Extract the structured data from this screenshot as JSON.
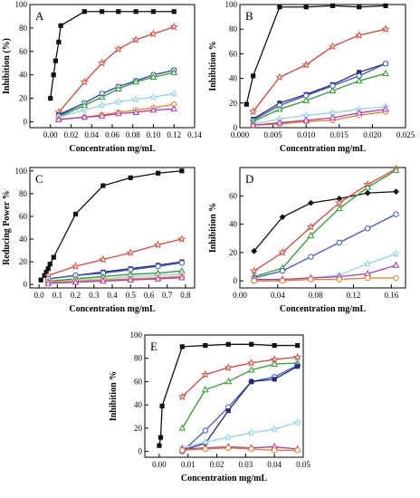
{
  "colors": {
    "black": "#111111",
    "red": "#e0413a",
    "navy": "#2a2a7a",
    "blue": "#3a56c8",
    "green": "#2aa02a",
    "cyan": "#8fd3e8",
    "orange": "#ef7d22",
    "magenta": "#b03ab0"
  },
  "chart_data": [
    {
      "id": "A",
      "type": "line",
      "label": "A",
      "xlabel": "Concentration   mg/mL",
      "ylabel": "Inhibition  (%)",
      "xlim": [
        -0.02,
        0.14
      ],
      "ylim": [
        -5,
        100
      ],
      "xticks": [
        "0.00",
        "0.02",
        "0.04",
        "0.06",
        "0.08",
        "0.10",
        "0.12",
        "0.14"
      ],
      "yticks": [
        "0",
        "20",
        "40",
        "60",
        "80",
        "100"
      ],
      "series": [
        {
          "color": "black",
          "marker": "square",
          "x": [
            0.0,
            0.003,
            0.005,
            0.008,
            0.01,
            0.033,
            0.05,
            0.066,
            0.083,
            0.1,
            0.12
          ],
          "y": [
            20,
            40,
            52,
            68,
            82,
            94,
            94,
            94,
            94,
            94,
            94
          ]
        },
        {
          "color": "red",
          "marker": "star",
          "x": [
            0.008,
            0.033,
            0.05,
            0.066,
            0.083,
            0.1,
            0.12
          ],
          "y": [
            8,
            34,
            50,
            62,
            70,
            75,
            81
          ]
        },
        {
          "color": "navy",
          "marker": "square",
          "x": [
            0.008,
            0.033,
            0.05,
            0.066,
            0.083,
            0.1,
            0.12
          ],
          "y": [
            6,
            16,
            24,
            30,
            35,
            40,
            44
          ]
        },
        {
          "color": "blue",
          "marker": "circle",
          "x": [
            0.008,
            0.033,
            0.05,
            0.066,
            0.083,
            0.1,
            0.12
          ],
          "y": [
            5,
            16,
            24,
            30,
            35,
            40,
            44
          ]
        },
        {
          "color": "green",
          "marker": "triangle",
          "x": [
            0.008,
            0.033,
            0.05,
            0.066,
            0.083,
            0.1,
            0.12
          ],
          "y": [
            4,
            14,
            21,
            28,
            34,
            38,
            42
          ]
        },
        {
          "color": "cyan",
          "marker": "star",
          "x": [
            0.008,
            0.033,
            0.05,
            0.066,
            0.083,
            0.1,
            0.12
          ],
          "y": [
            4,
            10,
            14,
            17,
            19,
            21,
            24
          ]
        },
        {
          "color": "orange",
          "marker": "circle",
          "x": [
            0.008,
            0.033,
            0.05,
            0.066,
            0.083,
            0.1,
            0.12
          ],
          "y": [
            2,
            4,
            6,
            8,
            10,
            12,
            15
          ]
        },
        {
          "color": "magenta",
          "marker": "triangle",
          "x": [
            0.008,
            0.033,
            0.05,
            0.066,
            0.083,
            0.1,
            0.12
          ],
          "y": [
            2,
            4,
            5,
            7,
            8,
            10,
            11
          ]
        }
      ]
    },
    {
      "id": "B",
      "type": "line",
      "label": "B",
      "xlabel": "Concentration   mg/mL",
      "ylabel": "Inhibition   %",
      "xlim": [
        0.0,
        0.025
      ],
      "ylim": [
        0,
        100
      ],
      "xticks": [
        "0.000",
        "0.005",
        "0.010",
        "0.015",
        "0.020",
        "0.025"
      ],
      "yticks": [
        "0",
        "20",
        "40",
        "60",
        "80",
        "100"
      ],
      "series": [
        {
          "color": "black",
          "marker": "square",
          "x": [
            0.001,
            0.002,
            0.006,
            0.01,
            0.014,
            0.018,
            0.022
          ],
          "y": [
            19,
            42,
            98,
            98,
            99,
            98,
            99
          ]
        },
        {
          "color": "red",
          "marker": "star",
          "x": [
            0.002,
            0.006,
            0.01,
            0.014,
            0.018,
            0.022
          ],
          "y": [
            13,
            41,
            51,
            66,
            75,
            80
          ]
        },
        {
          "color": "navy",
          "marker": "square",
          "x": [
            0.002,
            0.006,
            0.01,
            0.014,
            0.018,
            0.022
          ],
          "y": [
            7,
            20,
            27,
            35,
            45,
            52
          ]
        },
        {
          "color": "blue",
          "marker": "circle",
          "x": [
            0.002,
            0.006,
            0.01,
            0.014,
            0.018,
            0.022
          ],
          "y": [
            6,
            18,
            26,
            34,
            42,
            52
          ]
        },
        {
          "color": "green",
          "marker": "triangle",
          "x": [
            0.002,
            0.006,
            0.01,
            0.014,
            0.018,
            0.022
          ],
          "y": [
            5,
            15,
            22,
            30,
            38,
            44
          ]
        },
        {
          "color": "cyan",
          "marker": "star",
          "x": [
            0.002,
            0.006,
            0.01,
            0.014,
            0.018,
            0.022
          ],
          "y": [
            3,
            7,
            10,
            12,
            15,
            17
          ]
        },
        {
          "color": "orange",
          "marker": "circle",
          "x": [
            0.002,
            0.006,
            0.01,
            0.014,
            0.018,
            0.022
          ],
          "y": [
            2,
            3,
            5,
            6,
            10,
            13
          ]
        },
        {
          "color": "magenta",
          "marker": "triangle",
          "x": [
            0.002,
            0.006,
            0.01,
            0.014,
            0.018,
            0.022
          ],
          "y": [
            2,
            4,
            6,
            8,
            12,
            15
          ]
        }
      ]
    },
    {
      "id": "C",
      "type": "line",
      "label": "C",
      "xlabel": "Concentration   mg/mL",
      "ylabel": "Reducing Power %",
      "xlim": [
        -0.05,
        0.85
      ],
      "ylim": [
        -3,
        103
      ],
      "xticks": [
        "0.0",
        "0.1",
        "0.2",
        "0.3",
        "0.4",
        "0.5",
        "0.6",
        "0.7",
        "0.8"
      ],
      "yticks": [
        "0",
        "20",
        "40",
        "60",
        "80",
        "100"
      ],
      "series": [
        {
          "color": "black",
          "marker": "square",
          "x": [
            0.01,
            0.03,
            0.04,
            0.05,
            0.06,
            0.08,
            0.2,
            0.35,
            0.5,
            0.65,
            0.78
          ],
          "y": [
            4,
            8,
            11,
            14,
            18,
            24,
            62,
            87,
            94,
            98,
            100
          ]
        },
        {
          "color": "red",
          "marker": "star",
          "x": [
            0.05,
            0.2,
            0.35,
            0.5,
            0.65,
            0.78
          ],
          "y": [
            8,
            16,
            22,
            28,
            35,
            40
          ]
        },
        {
          "color": "navy",
          "marker": "square",
          "x": [
            0.05,
            0.2,
            0.35,
            0.5,
            0.65,
            0.78
          ],
          "y": [
            5,
            8,
            11,
            14,
            17,
            20
          ]
        },
        {
          "color": "blue",
          "marker": "circle",
          "x": [
            0.05,
            0.2,
            0.35,
            0.5,
            0.65,
            0.78
          ],
          "y": [
            5,
            8,
            10,
            13,
            16,
            19
          ]
        },
        {
          "color": "green",
          "marker": "triangle",
          "x": [
            0.05,
            0.2,
            0.35,
            0.5,
            0.65,
            0.78
          ],
          "y": [
            3,
            5,
            7,
            9,
            10,
            12
          ]
        },
        {
          "color": "cyan",
          "marker": "star",
          "x": [
            0.05,
            0.2,
            0.35,
            0.5,
            0.65,
            0.78
          ],
          "y": [
            2,
            4,
            5,
            7,
            8,
            9
          ]
        },
        {
          "color": "orange",
          "marker": "circle",
          "x": [
            0.05,
            0.2,
            0.35,
            0.5,
            0.65,
            0.78
          ],
          "y": [
            2,
            3,
            4,
            5,
            6,
            7
          ]
        },
        {
          "color": "magenta",
          "marker": "triangle",
          "x": [
            0.05,
            0.2,
            0.35,
            0.5,
            0.65,
            0.78
          ],
          "y": [
            1,
            2,
            3,
            4,
            5,
            6
          ]
        }
      ]
    },
    {
      "id": "D",
      "type": "line",
      "label": "D",
      "xlabel": "Concentration   mg/mL",
      "ylabel": "Inhibition   %",
      "xlim": [
        0.0,
        0.175
      ],
      "ylim": [
        -5,
        80
      ],
      "xticks": [
        "0.00",
        "0.04",
        "0.08",
        "0.12",
        "0.16"
      ],
      "yticks": [
        "0",
        "20",
        "40",
        "60"
      ],
      "series": [
        {
          "color": "black",
          "marker": "diamond",
          "x": [
            0.015,
            0.045,
            0.075,
            0.105,
            0.135,
            0.165
          ],
          "y": [
            21,
            45,
            55,
            58,
            62,
            63
          ]
        },
        {
          "color": "red",
          "marker": "star",
          "x": [
            0.015,
            0.045,
            0.075,
            0.105,
            0.135,
            0.165
          ],
          "y": [
            7,
            20,
            38,
            55,
            68,
            79
          ]
        },
        {
          "color": "green",
          "marker": "triangle",
          "x": [
            0.015,
            0.045,
            0.075,
            0.105,
            0.135,
            0.165
          ],
          "y": [
            3,
            9,
            32,
            51,
            66,
            78
          ]
        },
        {
          "color": "blue",
          "marker": "circle",
          "x": [
            0.015,
            0.045,
            0.075,
            0.105,
            0.135,
            0.165
          ],
          "y": [
            2,
            7,
            17,
            27,
            37,
            47
          ]
        },
        {
          "color": "cyan",
          "marker": "star",
          "x": [
            0.015,
            0.045,
            0.075,
            0.105,
            0.135,
            0.165
          ],
          "y": [
            1,
            1,
            2,
            4,
            12,
            19
          ]
        },
        {
          "color": "magenta",
          "marker": "triangle",
          "x": [
            0.015,
            0.045,
            0.075,
            0.105,
            0.135,
            0.165
          ],
          "y": [
            1,
            1,
            2,
            3,
            5,
            11
          ]
        },
        {
          "color": "orange",
          "marker": "circle",
          "x": [
            0.015,
            0.045,
            0.075,
            0.105,
            0.135,
            0.165
          ],
          "y": [
            0,
            0,
            1,
            1,
            2,
            2
          ]
        }
      ]
    },
    {
      "id": "E",
      "type": "line",
      "label": "E",
      "xlabel": "Concentration   mg/mL",
      "ylabel": "Inhibition   %",
      "xlim": [
        -0.005,
        0.05
      ],
      "ylim": [
        -5,
        100
      ],
      "xticks": [
        "0.00",
        "0.01",
        "0.02",
        "0.03",
        "0.04",
        "0.05"
      ],
      "yticks": [
        "0",
        "20",
        "40",
        "60",
        "80",
        "100"
      ],
      "series": [
        {
          "color": "black",
          "marker": "square",
          "x": [
            0.0,
            0.0005,
            0.001,
            0.008,
            0.016,
            0.024,
            0.032,
            0.04,
            0.048
          ],
          "y": [
            5,
            12,
            39,
            90,
            91,
            92,
            92,
            91,
            91
          ]
        },
        {
          "color": "red",
          "marker": "star",
          "x": [
            0.008,
            0.016,
            0.024,
            0.032,
            0.04,
            0.048
          ],
          "y": [
            47,
            66,
            72,
            76,
            79,
            81
          ]
        },
        {
          "color": "green",
          "marker": "triangle",
          "x": [
            0.008,
            0.016,
            0.024,
            0.032,
            0.04,
            0.048
          ],
          "y": [
            20,
            53,
            60,
            70,
            75,
            76
          ]
        },
        {
          "color": "blue",
          "marker": "circle",
          "x": [
            0.008,
            0.016,
            0.024,
            0.032,
            0.04,
            0.048
          ],
          "y": [
            0,
            18,
            38,
            60,
            64,
            74
          ]
        },
        {
          "color": "navy",
          "marker": "square",
          "x": [
            0.008,
            0.016,
            0.024,
            0.032,
            0.04,
            0.048
          ],
          "y": [
            1,
            7,
            35,
            60,
            62,
            73
          ]
        },
        {
          "color": "cyan",
          "marker": "star",
          "x": [
            0.008,
            0.016,
            0.024,
            0.032,
            0.04,
            0.048
          ],
          "y": [
            3,
            8,
            12,
            16,
            19,
            25
          ]
        },
        {
          "color": "magenta",
          "marker": "triangle",
          "x": [
            0.008,
            0.016,
            0.024,
            0.032,
            0.04,
            0.048
          ],
          "y": [
            2,
            3,
            4,
            3,
            4,
            2
          ]
        },
        {
          "color": "orange",
          "marker": "circle",
          "x": [
            0.008,
            0.016,
            0.024,
            0.032,
            0.04,
            0.048
          ],
          "y": [
            1,
            2,
            3,
            2,
            1,
            1
          ]
        }
      ]
    }
  ]
}
